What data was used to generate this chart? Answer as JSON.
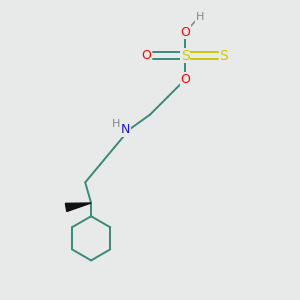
{
  "background_color": "#e8eaea",
  "figsize": [
    3.0,
    3.0
  ],
  "dpi": 100,
  "colors": {
    "H": "#888888",
    "O": "#ff0000",
    "S": "#cccc00",
    "N": "#1a1acc",
    "C": "#3a8a7a",
    "bond": "#3a8a7a",
    "wedge": "#111111"
  },
  "bond_lw": 1.4,
  "dbo": 0.012
}
